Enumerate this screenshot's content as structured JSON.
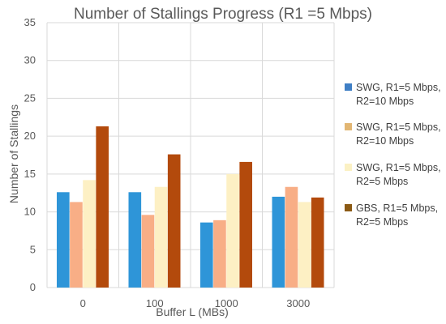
{
  "chart_data": {
    "type": "bar",
    "title": "Number of Stallings Progress (R1 =5 Mbps)",
    "xlabel": "Buffer L (MBs)",
    "ylabel": "Number of Stallings",
    "categories": [
      "0",
      "100",
      "1000",
      "3000"
    ],
    "ylim": [
      0,
      35
    ],
    "yticks": [
      0,
      5,
      10,
      15,
      20,
      25,
      30,
      35
    ],
    "grid": true,
    "legend_position": "right",
    "series": [
      {
        "name_lines": [
          "SWG, R1=5 Mbps,",
          "R2=10 Mbps"
        ],
        "bar_color": "#2e95d8",
        "legend_color": "#3f7fc5",
        "values": [
          12.6,
          12.6,
          8.6,
          12.0
        ]
      },
      {
        "name_lines": [
          "SWG, R1=5 Mbps,",
          "R2=10 Mbps"
        ],
        "bar_color": "#f8ae86",
        "legend_color": "#e2b673",
        "values": [
          11.3,
          9.6,
          8.9,
          13.3
        ]
      },
      {
        "name_lines": [
          "SWG, R1=5 Mbps,",
          "R2=5 Mbps"
        ],
        "bar_color": "#fdf0c4",
        "legend_color": "#fbf1c4",
        "values": [
          14.2,
          13.3,
          15.0,
          11.3
        ]
      },
      {
        "name_lines": [
          "GBS, R1=5 Mbps,",
          "R2=5 Mbps"
        ],
        "bar_color": "#b34a0c",
        "legend_color": "#8b5a14",
        "values": [
          21.3,
          17.6,
          16.6,
          11.9
        ]
      }
    ]
  }
}
